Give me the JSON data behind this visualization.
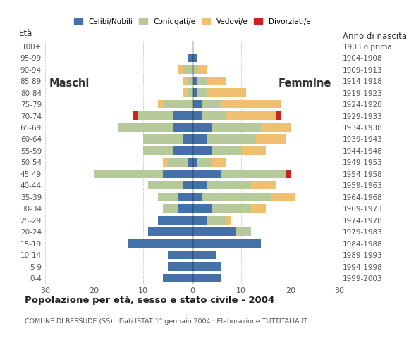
{
  "age_groups": [
    "0-4",
    "5-9",
    "10-14",
    "15-19",
    "20-24",
    "25-29",
    "30-34",
    "35-39",
    "40-44",
    "45-49",
    "50-54",
    "55-59",
    "60-64",
    "65-69",
    "70-74",
    "75-79",
    "80-84",
    "85-89",
    "90-94",
    "95-99",
    "100+"
  ],
  "birth_years": [
    "1999-2003",
    "1994-1998",
    "1989-1993",
    "1984-1988",
    "1979-1983",
    "1974-1978",
    "1969-1973",
    "1964-1968",
    "1959-1963",
    "1954-1958",
    "1949-1953",
    "1944-1948",
    "1939-1943",
    "1934-1938",
    "1929-1933",
    "1924-1928",
    "1919-1923",
    "1914-1918",
    "1909-1913",
    "1904-1908",
    "1903 o prima"
  ],
  "males": {
    "celibe": [
      6,
      5,
      5,
      13,
      9,
      7,
      3,
      3,
      2,
      6,
      1,
      4,
      2,
      4,
      4,
      0,
      0,
      0,
      0,
      1,
      0
    ],
    "coniugato": [
      0,
      0,
      0,
      0,
      0,
      0,
      3,
      4,
      7,
      14,
      4,
      6,
      8,
      11,
      7,
      6,
      1,
      1,
      2,
      0,
      0
    ],
    "vedovo": [
      0,
      0,
      0,
      0,
      0,
      0,
      0,
      0,
      0,
      0,
      1,
      0,
      0,
      0,
      0,
      1,
      1,
      1,
      1,
      0,
      0
    ],
    "divorziato": [
      0,
      0,
      0,
      0,
      0,
      0,
      0,
      0,
      0,
      0,
      0,
      0,
      0,
      0,
      1,
      0,
      0,
      0,
      0,
      0,
      0
    ]
  },
  "females": {
    "nubile": [
      6,
      6,
      5,
      14,
      9,
      3,
      4,
      2,
      3,
      6,
      1,
      4,
      3,
      4,
      2,
      2,
      1,
      1,
      0,
      1,
      0
    ],
    "coniugata": [
      0,
      0,
      0,
      0,
      3,
      4,
      8,
      14,
      9,
      13,
      3,
      6,
      10,
      10,
      5,
      4,
      2,
      2,
      1,
      0,
      0
    ],
    "vedova": [
      0,
      0,
      0,
      0,
      0,
      1,
      3,
      5,
      5,
      0,
      3,
      5,
      6,
      6,
      10,
      12,
      8,
      4,
      2,
      0,
      0
    ],
    "divorziata": [
      0,
      0,
      0,
      0,
      0,
      0,
      0,
      0,
      0,
      1,
      0,
      0,
      0,
      0,
      1,
      0,
      0,
      0,
      0,
      0,
      0
    ]
  },
  "colors": {
    "celibe": "#4472a8",
    "coniugato": "#b5c99a",
    "vedovo": "#f0c070",
    "divorziato": "#cc2222"
  },
  "title": "Popolazione per età, sesso e stato civile - 2004",
  "subtitle": "COMUNE DI BESSUDE (SS) · Dati ISTAT 1° gennaio 2004 · Elaborazione TUTTITALIA.IT",
  "xlabel_left": "Maschi",
  "xlabel_right": "Femmine",
  "ylabel": "Età",
  "ylabel_right": "Anno di nascita",
  "xlim": 30,
  "legend_labels": [
    "Celibi/Nubili",
    "Coniugati/e",
    "Vedovi/e",
    "Divorziati/e"
  ],
  "bg_color": "#ffffff",
  "grid_color": "#aaaaaa"
}
